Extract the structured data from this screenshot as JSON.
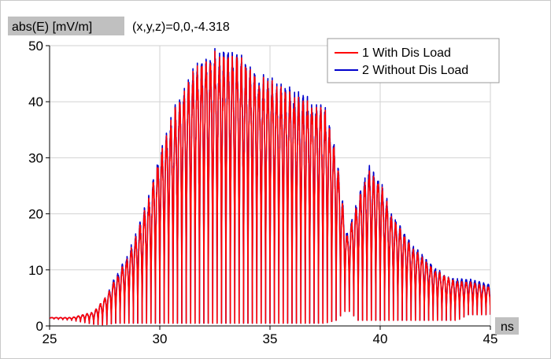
{
  "chart_data": {
    "type": "line",
    "ylabel": "abs(E) [mV/m]",
    "xlabel": "ns",
    "annotation": "(x,y,z)=0,0,-4.318",
    "xlim": [
      25,
      45
    ],
    "ylim": [
      0,
      50
    ],
    "x_ticks": [
      25,
      30,
      35,
      40,
      45
    ],
    "y_ticks": [
      0,
      10,
      20,
      30,
      40,
      50
    ],
    "grid": true,
    "legend_position": "top-right",
    "series": [
      {
        "name": "1 With Dis Load",
        "color": "#ff0000",
        "envelope_x": [
          25,
          26,
          27,
          27.5,
          28,
          28.5,
          29,
          29.5,
          30,
          30.5,
          31,
          31.5,
          32,
          32.5,
          33,
          33.5,
          34,
          34.5,
          35,
          35.5,
          36,
          36.5,
          37,
          37.5,
          38,
          38.5,
          39,
          39.5,
          40,
          40.5,
          41,
          41.5,
          42,
          42.5,
          43,
          43.5,
          44,
          44.5,
          45
        ],
        "envelope_max": [
          1.5,
          1.5,
          2.5,
          5,
          8.5,
          12,
          17,
          23,
          31,
          37,
          42,
          46,
          48,
          49,
          49,
          49,
          47,
          45,
          44,
          43,
          42,
          41,
          40.5,
          39,
          31,
          16,
          23,
          28,
          26,
          20,
          17,
          14,
          12,
          10,
          9,
          8,
          8,
          7.5,
          7
        ],
        "envelope_min": [
          1.3,
          1.0,
          0.3,
          0.2,
          0.5,
          0.5,
          0.5,
          0.5,
          0.5,
          0.5,
          0.5,
          0.5,
          0.5,
          0.5,
          0.5,
          0.5,
          0.5,
          0.5,
          0.5,
          0.5,
          0.5,
          0.5,
          0.5,
          0.5,
          1,
          3,
          1,
          1,
          1,
          1,
          1,
          1,
          1,
          1,
          1,
          1,
          2,
          2,
          2
        ]
      },
      {
        "name": "2 Without Dis Load",
        "color": "#0000cc",
        "envelope_x": [
          25,
          26,
          27,
          27.5,
          28,
          28.5,
          29,
          29.5,
          30,
          30.5,
          31,
          31.5,
          32,
          32.5,
          33,
          33.5,
          34,
          34.5,
          35,
          35.5,
          36,
          36.5,
          37,
          37.5,
          38,
          38.5,
          39,
          39.5,
          40,
          40.5,
          41,
          41.5,
          42,
          42.5,
          43,
          43.5,
          44,
          44.5,
          45
        ],
        "envelope_max": [
          1.5,
          1.5,
          2.5,
          5,
          9,
          12.5,
          17.5,
          23.5,
          31.5,
          37.5,
          42.5,
          46.5,
          48.5,
          49.5,
          50,
          49.5,
          47.5,
          45.5,
          44.5,
          43.5,
          43,
          42,
          41,
          39.5,
          31.5,
          16.5,
          23.5,
          29,
          26.5,
          20.5,
          17.5,
          14.5,
          12.5,
          10.5,
          9,
          8.5,
          8.5,
          8,
          7.5
        ],
        "envelope_min": [
          1.3,
          1.0,
          0.3,
          0.2,
          0.5,
          0.5,
          0.5,
          0.5,
          0.5,
          0.5,
          0.5,
          0.5,
          0.5,
          0.5,
          0.5,
          0.5,
          0.5,
          0.5,
          0.5,
          0.5,
          0.5,
          0.5,
          0.5,
          0.5,
          1,
          3,
          1,
          1,
          1,
          1,
          1,
          1,
          1,
          1,
          1,
          1,
          2,
          2,
          2
        ]
      }
    ]
  }
}
